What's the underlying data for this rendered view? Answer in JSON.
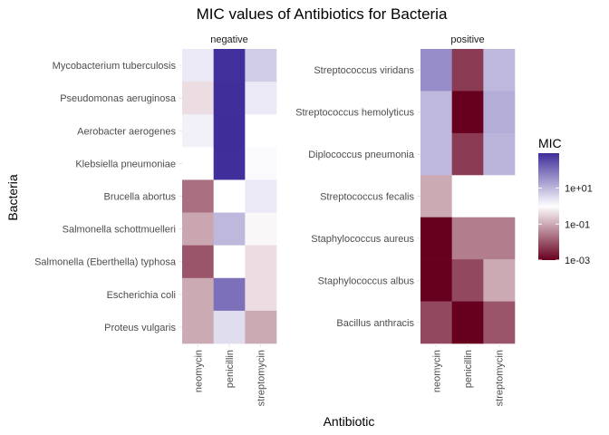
{
  "chart_data": {
    "type": "heatmap",
    "title": "MIC values of Antibiotics for Bacteria",
    "xlabel": "Antibiotic",
    "ylabel": "Bacteria",
    "x": [
      "neomycin",
      "penicillin",
      "streptomycin"
    ],
    "legend": {
      "title": "MIC",
      "scale": "log10",
      "range": [
        0.001,
        870
      ],
      "ticks": [
        "1e-03",
        "1e-01",
        "1e+01"
      ],
      "tick_values": [
        0.001,
        0.1,
        10
      ],
      "colors": {
        "low": "#67001F",
        "mid": "#FFFFFF",
        "high": "#3F2D9A"
      },
      "midpoint": 1,
      "placement": "right"
    },
    "panels": [
      {
        "facet": "negative",
        "rows": [
          {
            "bacteria": "Mycobacterium tuberculosis",
            "values": [
              2,
              800,
              5
            ]
          },
          {
            "bacteria": "Pseudomonas aeruginosa",
            "values": [
              0.4,
              850,
              2
            ]
          },
          {
            "bacteria": "Aerobacter aerogenes",
            "values": [
              1.6,
              870,
              1
            ]
          },
          {
            "bacteria": "Klebsiella pneumoniae",
            "values": [
              1,
              850,
              1.2
            ]
          },
          {
            "bacteria": "Brucella abortus",
            "values": [
              0.02,
              1,
              2
            ]
          },
          {
            "bacteria": "Salmonella schottmuelleri",
            "values": [
              0.09,
              10,
              0.8
            ]
          },
          {
            "bacteria": "Salmonella (Eberthella) typhosa",
            "values": [
              0.01,
              1,
              0.4
            ]
          },
          {
            "bacteria": "Escherichia coli",
            "values": [
              0.1,
              100,
              0.4
            ]
          },
          {
            "bacteria": "Proteus vulgaris",
            "values": [
              0.1,
              3,
              0.1
            ]
          }
        ]
      },
      {
        "facet": "positive",
        "rows": [
          {
            "bacteria": "Streptococcus viridans",
            "values": [
              40,
              0.005,
              10
            ]
          },
          {
            "bacteria": "Streptococcus hemolyticus",
            "values": [
              10,
              0.001,
              14
            ]
          },
          {
            "bacteria": "Diplococcus pneumonia",
            "values": [
              10,
              0.005,
              11
            ]
          },
          {
            "bacteria": "Streptococcus fecalis",
            "values": [
              0.1,
              1,
              1
            ]
          },
          {
            "bacteria": "Staphylococcus aureus",
            "values": [
              0.001,
              0.03,
              0.03
            ]
          },
          {
            "bacteria": "Staphylococcus albus",
            "values": [
              0.001,
              0.007,
              0.1
            ]
          },
          {
            "bacteria": "Bacillus anthracis",
            "values": [
              0.007,
              0.001,
              0.01
            ]
          }
        ]
      }
    ]
  }
}
